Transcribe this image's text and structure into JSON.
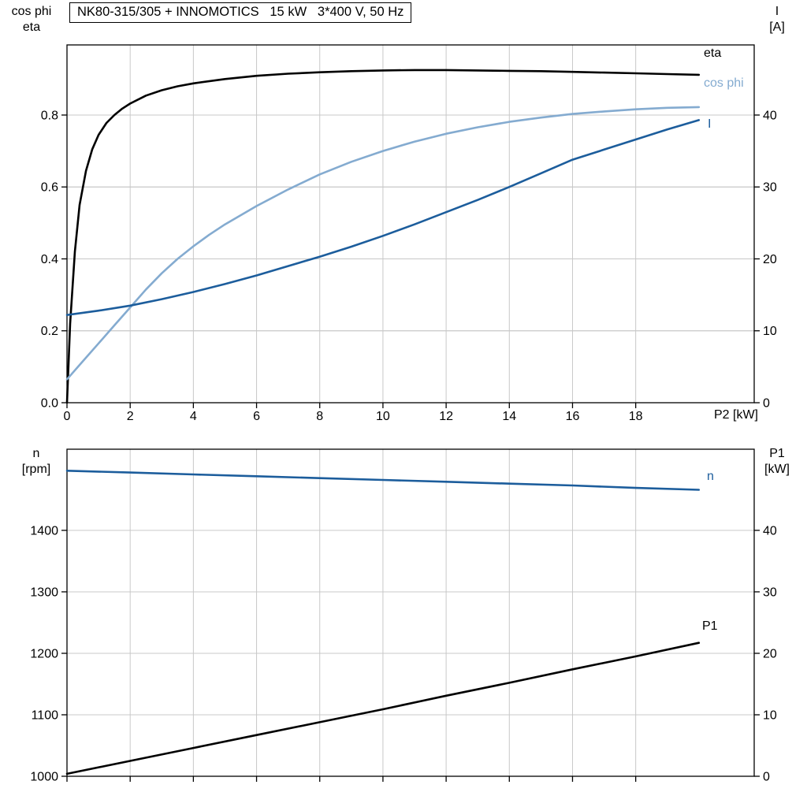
{
  "ui": {
    "title": "NK80-315/305 + INNOMOTICS   15 kW   3*400 V, 50 Hz",
    "top_chart": {
      "left_axis_caption": {
        "line1": "cos phi",
        "line2": "eta"
      },
      "right_axis_caption": {
        "line1": "I",
        "line2": "[A]"
      },
      "x_axis_caption": "P2 [kW]",
      "curve_labels": {
        "eta": "eta",
        "cos_phi": "cos phi",
        "current": "I"
      }
    },
    "bottom_chart": {
      "left_axis_caption": {
        "line1": "n",
        "line2": "[rpm]"
      },
      "right_axis_caption": {
        "line1": "P1",
        "line2": "[kW]"
      },
      "curve_labels": {
        "speed": "n",
        "input_power": "P1"
      }
    }
  },
  "colors": {
    "black": "#000000",
    "light_blue": "#84abd0",
    "dark_blue": "#1c5d9c",
    "grid": "#c8c8c8"
  },
  "chart_data": [
    {
      "type": "line",
      "title": "NK80-315/305 + INNOMOTICS 15 kW 3*400 V, 50 Hz",
      "xlabel": "P2 [kW]",
      "x_range": [
        0,
        21.75
      ],
      "x_tick_values": [
        0,
        2,
        4,
        6,
        8,
        10,
        12,
        14,
        16,
        18
      ],
      "x_tick_labels": [
        "0",
        "2",
        "4",
        "6",
        "8",
        "10",
        "12",
        "14",
        "16",
        "18"
      ],
      "show_x_tick_labels": true,
      "grid": true,
      "legend_position": "right-inside",
      "left_axis": {
        "label": "cos phi / eta",
        "range": [
          0,
          0.995
        ],
        "tick_values": [
          0,
          0.2,
          0.4,
          0.6,
          0.8
        ],
        "tick_labels": [
          "0.0",
          "0.2",
          "0.4",
          "0.6",
          "0.8"
        ]
      },
      "right_axis": {
        "label": "I [A]",
        "range": [
          0,
          49.75
        ],
        "tick_values": [
          0,
          10,
          20,
          30,
          40
        ],
        "tick_labels": [
          "0",
          "10",
          "20",
          "30",
          "40"
        ]
      },
      "series": [
        {
          "name": "eta",
          "axis": "left",
          "color_key": "black",
          "x": [
            0,
            0.1,
            0.25,
            0.4,
            0.6,
            0.8,
            1,
            1.25,
            1.5,
            1.75,
            2,
            2.5,
            3,
            3.5,
            4,
            5,
            6,
            7,
            8,
            9,
            10,
            11,
            12,
            13,
            14,
            15,
            16,
            17,
            18,
            19,
            20
          ],
          "y": [
            0,
            0.22,
            0.42,
            0.55,
            0.645,
            0.705,
            0.745,
            0.778,
            0.8,
            0.818,
            0.832,
            0.854,
            0.869,
            0.88,
            0.888,
            0.9,
            0.909,
            0.915,
            0.919,
            0.922,
            0.924,
            0.925,
            0.925,
            0.924,
            0.923,
            0.922,
            0.92,
            0.918,
            0.916,
            0.914,
            0.912
          ]
        },
        {
          "name": "cos phi",
          "axis": "left",
          "color_key": "light_blue",
          "x": [
            0,
            0.5,
            1,
            1.5,
            2,
            2.5,
            3,
            3.5,
            4,
            4.5,
            5,
            6,
            7,
            8,
            9,
            10,
            11,
            12,
            13,
            14,
            15,
            16,
            17,
            18,
            19,
            20
          ],
          "y": [
            0.065,
            0.115,
            0.165,
            0.215,
            0.265,
            0.315,
            0.36,
            0.4,
            0.435,
            0.467,
            0.496,
            0.547,
            0.593,
            0.635,
            0.67,
            0.7,
            0.726,
            0.748,
            0.766,
            0.781,
            0.793,
            0.803,
            0.81,
            0.816,
            0.82,
            0.822
          ]
        },
        {
          "name": "I",
          "axis": "right",
          "color_key": "dark_blue",
          "x": [
            0,
            1,
            2,
            3,
            4,
            5,
            6,
            7,
            8,
            9,
            10,
            11,
            12,
            13,
            14,
            15,
            16,
            17,
            18,
            19,
            20
          ],
          "y": [
            12.2,
            12.8,
            13.5,
            14.4,
            15.4,
            16.5,
            17.7,
            19.0,
            20.3,
            21.7,
            23.2,
            24.8,
            26.5,
            28.2,
            30.0,
            31.9,
            33.8,
            35.2,
            36.6,
            38.0,
            39.3
          ]
        }
      ]
    },
    {
      "type": "line",
      "title": "",
      "xlabel": "P2 [kW]",
      "x_range": [
        0,
        21.75
      ],
      "x_tick_values": [
        0,
        2,
        4,
        6,
        8,
        10,
        12,
        14,
        16,
        18
      ],
      "x_tick_labels": [
        "0",
        "2",
        "4",
        "6",
        "8",
        "10",
        "12",
        "14",
        "16",
        "18"
      ],
      "show_x_tick_labels": false,
      "grid": true,
      "legend_position": "right-inside",
      "left_axis": {
        "label": "n [rpm]",
        "range": [
          1000,
          1532
        ],
        "tick_values": [
          1000,
          1100,
          1200,
          1300,
          1400
        ],
        "tick_labels": [
          "1000",
          "1100",
          "1200",
          "1300",
          "1400"
        ]
      },
      "right_axis": {
        "label": "P1 [kW]",
        "range": [
          0,
          53.2
        ],
        "tick_values": [
          0,
          10,
          20,
          30,
          40
        ],
        "tick_labels": [
          "0",
          "10",
          "20",
          "30",
          "40"
        ]
      },
      "series": [
        {
          "name": "n",
          "axis": "left",
          "color_key": "dark_blue",
          "x": [
            0,
            2,
            4,
            6,
            8,
            10,
            12,
            14,
            16,
            18,
            20
          ],
          "y": [
            1497,
            1494,
            1491,
            1488,
            1485,
            1482,
            1479,
            1476,
            1473,
            1469,
            1466
          ]
        },
        {
          "name": "P1",
          "axis": "right",
          "color_key": "black",
          "x": [
            0,
            2,
            4,
            6,
            8,
            10,
            12,
            14,
            16,
            18,
            20
          ],
          "y": [
            0.4,
            2.5,
            4.6,
            6.7,
            8.8,
            10.9,
            13.1,
            15.2,
            17.4,
            19.5,
            21.7
          ]
        }
      ]
    }
  ]
}
